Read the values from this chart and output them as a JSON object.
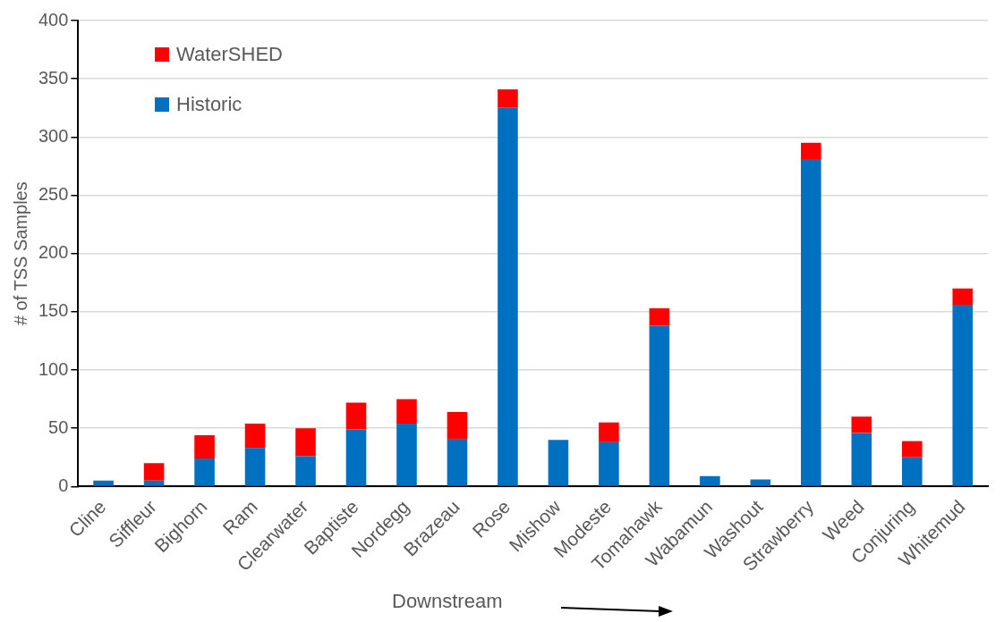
{
  "chart_data": {
    "type": "bar",
    "ylabel": "# of TSS Samples",
    "xlabel": "Downstream",
    "categories": [
      "Cline",
      "Siffleur",
      "Bighorn",
      "Ram",
      "Clearwater",
      "Baptiste",
      "Nordegg",
      "Brazeau",
      "Rose",
      "Mishow",
      "Modeste",
      "Tomahawk",
      "Wabamun",
      "Washout",
      "Strawberry",
      "Weed",
      "Conjuring",
      "Whitemud"
    ],
    "series": [
      {
        "name": "Historic",
        "color": "#0070c0",
        "values": [
          5,
          5,
          24,
          33,
          26,
          49,
          54,
          41,
          325,
          40,
          38,
          138,
          9,
          6,
          281,
          46,
          25,
          156
        ]
      },
      {
        "name": "WaterSHED",
        "color": "#ff0000",
        "values": [
          0,
          15,
          20,
          21,
          24,
          23,
          21,
          23,
          16,
          0,
          17,
          15,
          0,
          0,
          14,
          14,
          14,
          14
        ]
      }
    ],
    "stacked": true,
    "ylim": [
      0,
      400
    ],
    "yticks": [
      0,
      50,
      100,
      150,
      200,
      250,
      300,
      350,
      400
    ],
    "grid": "y",
    "legend": "top left"
  }
}
